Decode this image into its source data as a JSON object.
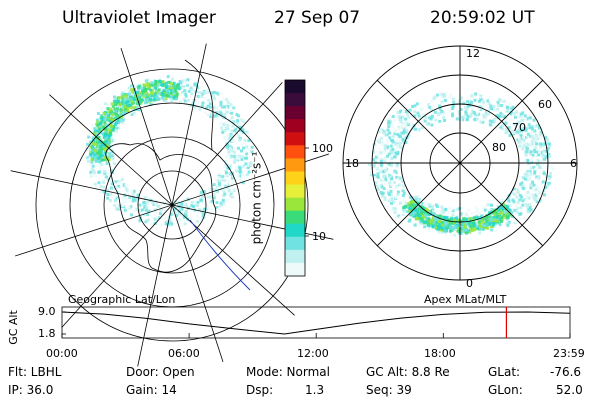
{
  "header": {
    "title": "Ultraviolet Imager",
    "date": "27 Sep 07",
    "time": "20:59:02 UT"
  },
  "colorbar": {
    "unit_label": "photon cm⁻²s⁻¹",
    "ticks": [
      "100",
      "10"
    ],
    "colors": [
      "#1a0a2e",
      "#3a0c3c",
      "#6a0030",
      "#a00020",
      "#d01010",
      "#ff5010",
      "#ff9a10",
      "#ffd21a",
      "#e6f03a",
      "#9ae63a",
      "#3adc7a",
      "#20d8c8",
      "#70e2e2",
      "#c0f0f0",
      "#eefafa"
    ]
  },
  "right_map": {
    "mlt_labels": [
      "12",
      "18",
      "6",
      "0"
    ],
    "mlat_labels": [
      "60",
      "70",
      "80"
    ]
  },
  "bottom": {
    "left_label": "Geographic Lat/Lon",
    "right_label": "Apex MLat/MLT",
    "y_axis_label": "GC Alt",
    "y_ticks": [
      "9.0",
      "1.8"
    ],
    "x_ticks": [
      "00:00",
      "06:00",
      "12:00",
      "18:00",
      "23:59"
    ]
  },
  "info": {
    "flt": "Flt: LBHL",
    "ip": "IP: 36.0",
    "door": "Door: Open",
    "gain": "Gain: 14",
    "mode": "Mode: Normal",
    "dsp_label": "Dsp:",
    "dsp_value": "1.3",
    "gc_alt": "GC Alt: 8.8 Re",
    "seq": "Seq: 39",
    "glat_label": "GLat:",
    "glat_value": "-76.6",
    "glon_label": "GLon:",
    "glon_value": "52.0"
  },
  "chart_data": {
    "type": "line",
    "title": "",
    "xlabel": "",
    "ylabel": "GC Alt",
    "x_ticks": [
      "00:00",
      "06:00",
      "12:00",
      "18:00",
      "23:59"
    ],
    "y_ticks": [
      9.0,
      1.8
    ],
    "ylim": [
      1.8,
      9.0
    ],
    "series": [
      {
        "x_hours": [
          0,
          2,
          4,
          6,
          8,
          10.5,
          12,
          14,
          16,
          18,
          20,
          22,
          23.98
        ],
        "values": [
          9.0,
          8.3,
          6.9,
          5.1,
          3.6,
          1.8,
          3.3,
          5.3,
          7.0,
          8.2,
          8.9,
          9.0,
          8.6
        ]
      }
    ],
    "marker_hours": 20.98,
    "marker_color": "#e00000"
  }
}
